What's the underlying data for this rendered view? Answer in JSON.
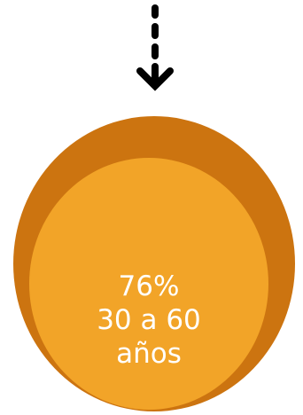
{
  "diagram": {
    "arrow": {
      "icon": "dashed-down-arrow-icon",
      "color": "#000000"
    },
    "circle": {
      "outer_color": "#cc7410",
      "inner_color": "#f2a428",
      "text_color": "#ffffff",
      "percent": "76%",
      "line1": "30 a 60",
      "line2": "años"
    }
  }
}
